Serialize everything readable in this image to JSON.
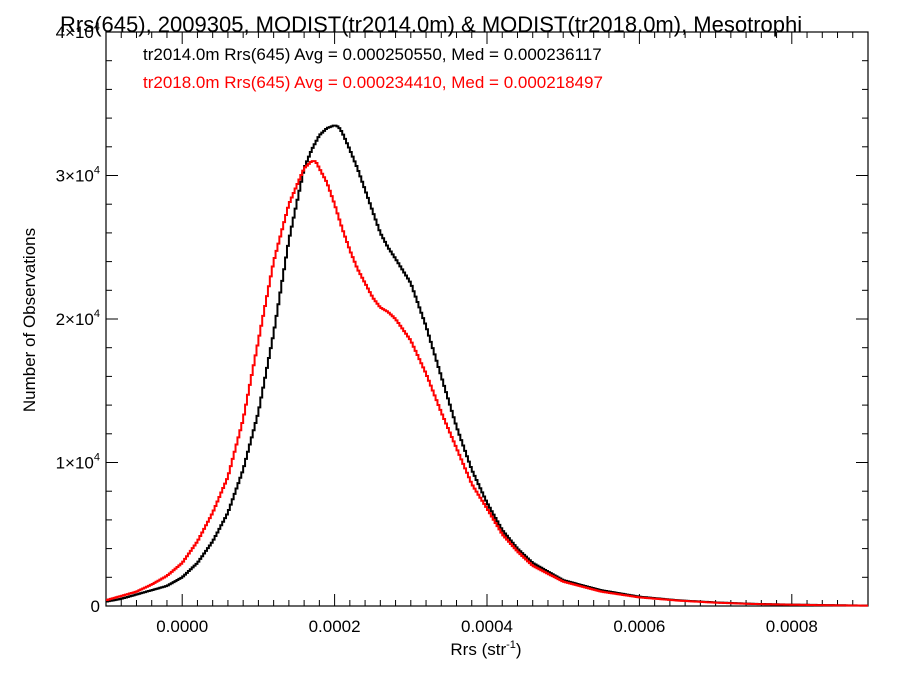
{
  "chart_data": {
    "type": "line",
    "title": "Rrs(645), 2009305, MODIST(tr2014.0m) & MODIST(tr2018.0m), Mesotrophi",
    "xlabel_main": "Rrs (str",
    "xlabel_sup": "-1",
    "xlabel_tail": ")",
    "ylabel": "Number of Observations",
    "xlim": [
      -0.0001,
      0.0009
    ],
    "ylim": [
      0,
      40000
    ],
    "x_ticks": [
      {
        "value": 0.0,
        "label": "0.0000"
      },
      {
        "value": 0.0002,
        "label": "0.0002"
      },
      {
        "value": 0.0004,
        "label": "0.0004"
      },
      {
        "value": 0.0006,
        "label": "0.0006"
      },
      {
        "value": 0.0008,
        "label": "0.0008"
      }
    ],
    "y_ticks": [
      {
        "value": 0,
        "mant": "0",
        "exp": ""
      },
      {
        "value": 10000,
        "mant": "1×10",
        "exp": "4"
      },
      {
        "value": 20000,
        "mant": "2×10",
        "exp": "4"
      },
      {
        "value": 30000,
        "mant": "3×10",
        "exp": "4"
      },
      {
        "value": 40000,
        "mant": "4×10",
        "exp": "4"
      }
    ],
    "annotations": [
      {
        "text": "tr2014.0m Rrs(645) Avg = 0.000250550, Med = 0.000236117",
        "color": "#000000"
      },
      {
        "text": "tr2018.0m Rrs(645) Avg = 0.000234410, Med = 0.000218497",
        "color": "#ff0000"
      }
    ],
    "series": [
      {
        "color": "#000000",
        "x": [
          -0.0001,
          -8e-05,
          -6e-05,
          -4e-05,
          -2e-05,
          0.0,
          2e-05,
          4e-05,
          6e-05,
          8e-05,
          0.0001,
          0.00012,
          0.00014,
          0.00016,
          0.00017,
          0.00018,
          0.00019,
          0.0002,
          0.000205,
          0.00021,
          0.00022,
          0.00023,
          0.00024,
          0.00025,
          0.00026,
          0.00027,
          0.00028,
          0.0003,
          0.00032,
          0.00034,
          0.00036,
          0.00038,
          0.0004,
          0.00042,
          0.00044,
          0.00046,
          0.0005,
          0.00055,
          0.0006,
          0.00065,
          0.0007,
          0.00075,
          0.0008,
          0.00085,
          0.0009
        ],
        "y": [
          300,
          500,
          800,
          1100,
          1400,
          2000,
          3000,
          4500,
          6500,
          9500,
          13500,
          19000,
          25500,
          30500,
          31800,
          32800,
          33300,
          33500,
          33400,
          33000,
          31800,
          30500,
          29000,
          27500,
          26000,
          25000,
          24200,
          22500,
          19500,
          16000,
          12500,
          9500,
          7200,
          5300,
          4000,
          3000,
          1800,
          1100,
          650,
          400,
          250,
          150,
          100,
          60,
          30
        ]
      },
      {
        "color": "#ff0000",
        "x": [
          -0.0001,
          -8e-05,
          -6e-05,
          -4e-05,
          -2e-05,
          0.0,
          2e-05,
          4e-05,
          6e-05,
          8e-05,
          0.0001,
          0.00012,
          0.00014,
          0.00016,
          0.00017,
          0.000175,
          0.00018,
          0.00019,
          0.0002,
          0.00021,
          0.00022,
          0.00023,
          0.00024,
          0.00025,
          0.00026,
          0.00027,
          0.00028,
          0.0003,
          0.00032,
          0.00034,
          0.00036,
          0.00038,
          0.0004,
          0.00042,
          0.00044,
          0.00046,
          0.0005,
          0.00055,
          0.0006,
          0.00065,
          0.0007,
          0.00075,
          0.0008,
          0.00085,
          0.0009
        ],
        "y": [
          400,
          700,
          1000,
          1500,
          2100,
          3000,
          4500,
          6500,
          9000,
          13000,
          18500,
          24000,
          28000,
          30500,
          31000,
          31000,
          30500,
          29500,
          28000,
          26300,
          24800,
          23500,
          22500,
          21500,
          20800,
          20500,
          20000,
          18500,
          16200,
          13500,
          11000,
          8500,
          6800,
          5000,
          3800,
          2800,
          1700,
          1000,
          600,
          380,
          230,
          140,
          90,
          50,
          25
        ]
      }
    ]
  }
}
